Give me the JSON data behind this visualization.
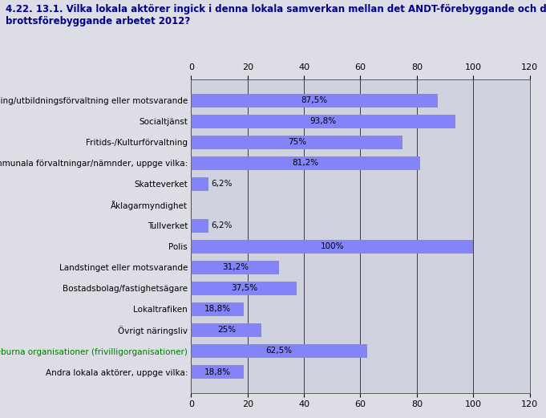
{
  "title_line1": "4.22. 13.1. Vilka lokala aktörer ingick i denna lokala samverkan mellan det ANDT-förebyggande och det",
  "title_line2": "brottsförebyggande arbetet 2012?",
  "categories": [
    "Skolförvaltning/utbildningsförvaltning eller motsvarande",
    "Socialtjänst",
    "Fritids-/Kulturförvaltning",
    "Andra kommunala förvaltningar/nämnder, uppge vilka:",
    "Skatteverket",
    "Åklagarmyndighet",
    "Tullverket",
    "Polis",
    "Landstinget eller motsvarande",
    "Bostadsbolag/fastighetsägare",
    "Lokaltrafiken",
    "Övrigt näringsliv",
    "Idéburna organisationer (frivilligorganisationer)",
    "Andra lokala aktörer, uppge vilka:"
  ],
  "values": [
    87.5,
    93.8,
    75.0,
    81.2,
    6.2,
    0.0,
    6.2,
    100.0,
    31.2,
    37.5,
    18.8,
    25.0,
    62.5,
    18.8
  ],
  "labels": [
    "87,5%",
    "93,8%",
    "75%",
    "81,2%",
    "6,2%",
    "",
    "6,2%",
    "100%",
    "31,2%",
    "37,5%",
    "18,8%",
    "25%",
    "62,5%",
    "18,8%"
  ],
  "bar_color": "#8484f8",
  "background_color": "#dcdde5",
  "plot_background_color": "#d0d2e0",
  "title_color": "#00008b",
  "label_color": "#000000",
  "special_label_color": "#007b00",
  "xlim": [
    0,
    120
  ],
  "xticks": [
    0,
    20,
    40,
    60,
    80,
    100,
    120
  ],
  "grid_color": "#000000",
  "title_fontsize": 8.5,
  "tick_fontsize": 8,
  "bar_label_fontsize": 7.5,
  "category_fontsize": 7.5,
  "special_category_index": 12
}
